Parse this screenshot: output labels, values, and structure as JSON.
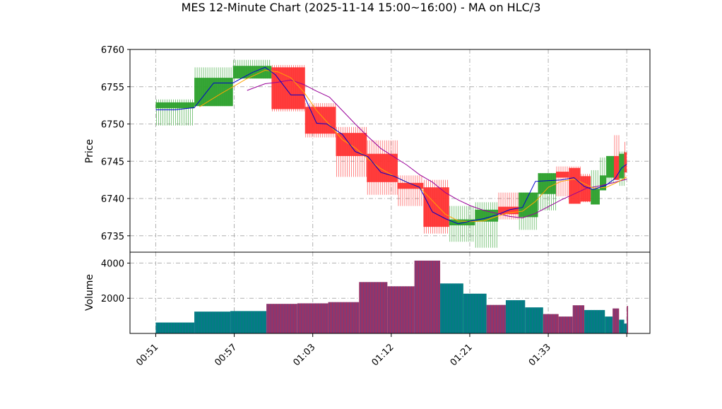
{
  "chart_data": [
    {
      "type": "ohlc_candlestick",
      "title": "MES 12-Minute Chart (2025-11-14 15:00~16:00) - MA on HLC/3",
      "ylabel": "Price",
      "ylim": [
        6732.8,
        6760
      ],
      "yticks": [
        6735,
        6740,
        6745,
        6750,
        6755,
        6760
      ],
      "grid": true,
      "colors": {
        "up": "#2ca02c",
        "down": "#ff3333",
        "ma_fast": "#0000cc",
        "ma_mid": "#ffa500",
        "ma_slow": "#990099",
        "grid": "#b0b0b0"
      },
      "candles": [
        {
          "x": 0.0,
          "w": 3.0,
          "o": 6752.1,
          "h": 6753.3,
          "l": 6749.8,
          "c": 6752.9
        },
        {
          "x": 3.0,
          "w": 3.0,
          "o": 6752.4,
          "h": 6757.6,
          "l": 6752.4,
          "c": 6756.2
        },
        {
          "x": 6.0,
          "w": 3.0,
          "o": 6756.1,
          "h": 6758.6,
          "l": 6756.1,
          "c": 6757.8
        },
        {
          "x": 9.0,
          "w": 2.6,
          "o": 6757.6,
          "h": 6757.9,
          "l": 6751.7,
          "c": 6752.0
        },
        {
          "x": 11.6,
          "w": 2.4,
          "o": 6752.3,
          "h": 6752.8,
          "l": 6748.2,
          "c": 6748.7
        },
        {
          "x": 14.0,
          "w": 2.4,
          "o": 6748.8,
          "h": 6749.6,
          "l": 6742.9,
          "c": 6745.7
        },
        {
          "x": 16.4,
          "w": 2.4,
          "o": 6746.0,
          "h": 6747.8,
          "l": 6740.5,
          "c": 6742.2
        },
        {
          "x": 18.8,
          "w": 2.0,
          "o": 6742.1,
          "h": 6743.1,
          "l": 6739.0,
          "c": 6741.3
        },
        {
          "x": 20.8,
          "w": 2.0,
          "o": 6741.5,
          "h": 6742.5,
          "l": 6735.3,
          "c": 6736.2
        },
        {
          "x": 22.8,
          "w": 2.0,
          "o": 6736.4,
          "h": 6739.0,
          "l": 6734.2,
          "c": 6737.2
        },
        {
          "x": 24.8,
          "w": 1.8,
          "o": 6736.9,
          "h": 6739.5,
          "l": 6733.4,
          "c": 6738.5
        },
        {
          "x": 26.6,
          "w": 1.6,
          "o": 6738.9,
          "h": 6740.8,
          "l": 6737.2,
          "c": 6737.9
        },
        {
          "x": 28.2,
          "w": 1.5,
          "o": 6737.5,
          "h": 6740.8,
          "l": 6735.8,
          "c": 6740.8
        },
        {
          "x": 29.7,
          "w": 1.4,
          "o": 6740.6,
          "h": 6743.4,
          "l": 6738.4,
          "c": 6743.4
        },
        {
          "x": 31.1,
          "w": 1.0,
          "o": 6743.6,
          "h": 6744.3,
          "l": 6740.3,
          "c": 6742.8
        },
        {
          "x": 32.1,
          "w": 0.9,
          "o": 6744.1,
          "h": 6744.3,
          "l": 6739.3,
          "c": 6739.3
        },
        {
          "x": 33.0,
          "w": 0.8,
          "o": 6743.0,
          "h": 6743.3,
          "l": 6739.5,
          "c": 6739.6
        },
        {
          "x": 33.8,
          "w": 0.7,
          "o": 6739.2,
          "h": 6743.8,
          "l": 6739.2,
          "c": 6741.3
        },
        {
          "x": 34.5,
          "w": 0.5,
          "o": 6741.1,
          "h": 6745.5,
          "l": 6741.1,
          "c": 6743.1
        },
        {
          "x": 35.0,
          "w": 0.6,
          "o": 6742.8,
          "h": 6745.7,
          "l": 6742.1,
          "c": 6745.7
        },
        {
          "x": 35.6,
          "w": 0.4,
          "o": 6745.7,
          "h": 6748.5,
          "l": 6742.5,
          "c": 6742.5
        },
        {
          "x": 36.0,
          "w": 0.4,
          "o": 6742.7,
          "h": 6746.3,
          "l": 6741.7,
          "c": 6746.0
        },
        {
          "x": 36.4,
          "w": 0.2,
          "o": 6746.2,
          "h": 6747.6,
          "l": 6742.5,
          "c": 6743.5
        }
      ],
      "ma_fast": [
        [
          0,
          6751.9
        ],
        [
          1.5,
          6751.9
        ],
        [
          3.0,
          6752.2
        ],
        [
          4.5,
          6755.5
        ],
        [
          6.0,
          6755.5
        ],
        [
          7.5,
          6756.9
        ],
        [
          8.5,
          6757.6
        ],
        [
          9.3,
          6756.6
        ],
        [
          10.5,
          6753.9
        ],
        [
          11.5,
          6753.9
        ],
        [
          12.5,
          6750.1
        ],
        [
          13.3,
          6750.0
        ],
        [
          14.5,
          6748.6
        ],
        [
          15.5,
          6746.3
        ],
        [
          16.5,
          6745.6
        ],
        [
          17.5,
          6743.5
        ],
        [
          18.5,
          6743.0
        ],
        [
          19.5,
          6742.2
        ],
        [
          20.5,
          6741.5
        ],
        [
          21.5,
          6738.2
        ],
        [
          22.5,
          6737.3
        ],
        [
          23.5,
          6736.6
        ],
        [
          24.5,
          6737.0
        ],
        [
          25.5,
          6737.3
        ],
        [
          26.5,
          6737.8
        ],
        [
          27.5,
          6738.5
        ],
        [
          28.5,
          6738.8
        ],
        [
          29.5,
          6742.3
        ],
        [
          30.5,
          6742.4
        ],
        [
          31.5,
          6742.5
        ],
        [
          32.5,
          6742.8
        ],
        [
          33.3,
          6741.6
        ],
        [
          34.0,
          6741.2
        ],
        [
          35.0,
          6741.8
        ],
        [
          35.7,
          6742.7
        ],
        [
          36.2,
          6744.1
        ],
        [
          36.6,
          6744.6
        ]
      ],
      "ma_mid": [
        [
          3.4,
          6752.3
        ],
        [
          5.0,
          6754.0
        ],
        [
          7.0,
          6756.0
        ],
        [
          8.5,
          6757.2
        ],
        [
          9.5,
          6757.0
        ],
        [
          10.5,
          6756.2
        ],
        [
          11.5,
          6754.3
        ],
        [
          12.5,
          6751.8
        ],
        [
          13.5,
          6749.9
        ],
        [
          14.5,
          6747.9
        ],
        [
          15.5,
          6746.8
        ],
        [
          16.5,
          6745.3
        ],
        [
          17.5,
          6744.0
        ],
        [
          18.5,
          6743.0
        ],
        [
          19.5,
          6742.2
        ],
        [
          20.5,
          6741.5
        ],
        [
          21.5,
          6739.7
        ],
        [
          22.5,
          6737.9
        ],
        [
          23.5,
          6737.0
        ],
        [
          24.5,
          6736.9
        ],
        [
          25.5,
          6737.0
        ],
        [
          26.5,
          6737.6
        ],
        [
          27.5,
          6738.1
        ],
        [
          28.5,
          6738.3
        ],
        [
          29.5,
          6739.6
        ],
        [
          30.5,
          6741.5
        ],
        [
          31.5,
          6742.3
        ],
        [
          32.5,
          6742.6
        ],
        [
          33.3,
          6742.0
        ],
        [
          34.0,
          6741.4
        ],
        [
          35.0,
          6741.5
        ],
        [
          36.0,
          6742.3
        ],
        [
          36.6,
          6742.9
        ]
      ],
      "ma_slow": [
        [
          7.1,
          6754.5
        ],
        [
          8.5,
          6755.4
        ],
        [
          9.5,
          6755.6
        ],
        [
          10.5,
          6755.9
        ],
        [
          11.5,
          6755.3
        ],
        [
          12.5,
          6754.4
        ],
        [
          13.5,
          6753.6
        ],
        [
          14.5,
          6751.8
        ],
        [
          15.5,
          6750.0
        ],
        [
          16.5,
          6748.3
        ],
        [
          17.5,
          6746.7
        ],
        [
          18.5,
          6745.6
        ],
        [
          19.5,
          6744.5
        ],
        [
          20.5,
          6743.2
        ],
        [
          21.5,
          6742.2
        ],
        [
          22.5,
          6740.8
        ],
        [
          23.5,
          6739.8
        ],
        [
          24.5,
          6739.0
        ],
        [
          25.5,
          6738.4
        ],
        [
          26.5,
          6738.0
        ],
        [
          27.5,
          6737.6
        ],
        [
          28.5,
          6737.4
        ],
        [
          29.5,
          6738.0
        ],
        [
          30.5,
          6738.9
        ],
        [
          31.5,
          6739.8
        ],
        [
          32.5,
          6740.6
        ],
        [
          33.5,
          6741.4
        ],
        [
          34.5,
          6741.7
        ],
        [
          35.5,
          6742.1
        ],
        [
          36.6,
          6742.6
        ]
      ]
    },
    {
      "type": "bar",
      "ylabel": "Volume",
      "ylim": [
        0,
        4620
      ],
      "yticks": [
        2000,
        4000
      ],
      "grid": true,
      "colors": {
        "up": "#008080",
        "down": "#993366",
        "stripe": "#3355aa"
      },
      "bars": [
        {
          "x": 0.0,
          "w": 3.0,
          "v": 620,
          "dir": "up"
        },
        {
          "x": 3.0,
          "w": 2.8,
          "v": 1240,
          "dir": "up"
        },
        {
          "x": 5.8,
          "w": 2.8,
          "v": 1270,
          "dir": "up"
        },
        {
          "x": 8.6,
          "w": 2.4,
          "v": 1680,
          "dir": "down"
        },
        {
          "x": 11.0,
          "w": 2.4,
          "v": 1710,
          "dir": "down"
        },
        {
          "x": 13.4,
          "w": 2.4,
          "v": 1780,
          "dir": "down"
        },
        {
          "x": 15.8,
          "w": 2.2,
          "v": 2920,
          "dir": "down"
        },
        {
          "x": 18.0,
          "w": 2.1,
          "v": 2680,
          "dir": "down"
        },
        {
          "x": 20.1,
          "w": 2.0,
          "v": 4140,
          "dir": "down"
        },
        {
          "x": 22.1,
          "w": 1.8,
          "v": 2840,
          "dir": "up"
        },
        {
          "x": 23.9,
          "w": 1.8,
          "v": 2260,
          "dir": "up"
        },
        {
          "x": 25.7,
          "w": 1.5,
          "v": 1620,
          "dir": "down"
        },
        {
          "x": 27.2,
          "w": 1.5,
          "v": 1890,
          "dir": "up"
        },
        {
          "x": 28.7,
          "w": 1.4,
          "v": 1480,
          "dir": "up"
        },
        {
          "x": 30.1,
          "w": 1.2,
          "v": 1100,
          "dir": "down"
        },
        {
          "x": 31.3,
          "w": 1.1,
          "v": 960,
          "dir": "down"
        },
        {
          "x": 32.4,
          "w": 0.9,
          "v": 1600,
          "dir": "down"
        },
        {
          "x": 33.3,
          "w": 1.6,
          "v": 1330,
          "dir": "up"
        },
        {
          "x": 34.9,
          "w": 0.6,
          "v": 960,
          "dir": "up"
        },
        {
          "x": 35.5,
          "w": 0.5,
          "v": 1420,
          "dir": "down"
        },
        {
          "x": 36.0,
          "w": 0.4,
          "v": 780,
          "dir": "up"
        },
        {
          "x": 36.4,
          "w": 0.2,
          "v": 560,
          "dir": "up"
        },
        {
          "x": 36.6,
          "w": 0.1,
          "v": 1560,
          "dir": "down"
        }
      ]
    }
  ],
  "xaxis": {
    "domain": [
      -2.0,
      38.4
    ],
    "ticks": [
      {
        "x": 0.0,
        "label": "00:51"
      },
      {
        "x": 6.1,
        "label": "00:57"
      },
      {
        "x": 12.2,
        "label": "01:03"
      },
      {
        "x": 18.3,
        "label": "01:12"
      },
      {
        "x": 24.4,
        "label": "01:21"
      },
      {
        "x": 30.5,
        "label": "01:33"
      },
      {
        "x": 36.6,
        "label": ""
      }
    ]
  }
}
